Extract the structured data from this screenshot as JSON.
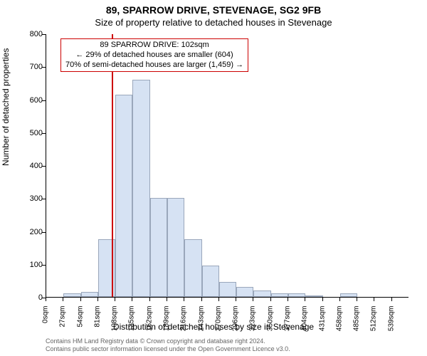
{
  "title_line1": "89, SPARROW DRIVE, STEVENAGE, SG2 9FB",
  "title_line2": "Size of property relative to detached houses in Stevenage",
  "ylabel": "Number of detached properties",
  "xlabel": "Distribution of detached houses by size in Stevenage",
  "footer_line1": "Contains HM Land Registry data © Crown copyright and database right 2024.",
  "footer_line2": "Contains public sector information licensed under the Open Government Licence v3.0.",
  "chart": {
    "type": "histogram",
    "ymax": 800,
    "ytick_step": 100,
    "bar_fill": "#d6e2f3",
    "bar_border": "#9aa7bb",
    "background": "#ffffff",
    "axis_color": "#000000",
    "marker_color": "#cc0000",
    "marker_value": 102,
    "x_tick_labels": [
      "0sqm",
      "27sqm",
      "54sqm",
      "81sqm",
      "108sqm",
      "135sqm",
      "162sqm",
      "189sqm",
      "216sqm",
      "243sqm",
      "270sqm",
      "296sqm",
      "323sqm",
      "350sqm",
      "377sqm",
      "404sqm",
      "431sqm",
      "458sqm",
      "485sqm",
      "512sqm",
      "539sqm"
    ],
    "values": [
      0,
      10,
      15,
      175,
      615,
      660,
      300,
      300,
      175,
      95,
      45,
      30,
      20,
      10,
      10,
      5,
      0,
      10,
      0,
      0,
      0
    ]
  },
  "annotation": {
    "line1": "89 SPARROW DRIVE: 102sqm",
    "line2": "← 29% of detached houses are smaller (604)",
    "line3": "70% of semi-detached houses are larger (1,459) →"
  },
  "fonts": {
    "title_size_pt": 14,
    "subtitle_size_pt": 13,
    "label_size_pt": 12,
    "tick_size_pt": 11,
    "footer_size_pt": 9
  }
}
